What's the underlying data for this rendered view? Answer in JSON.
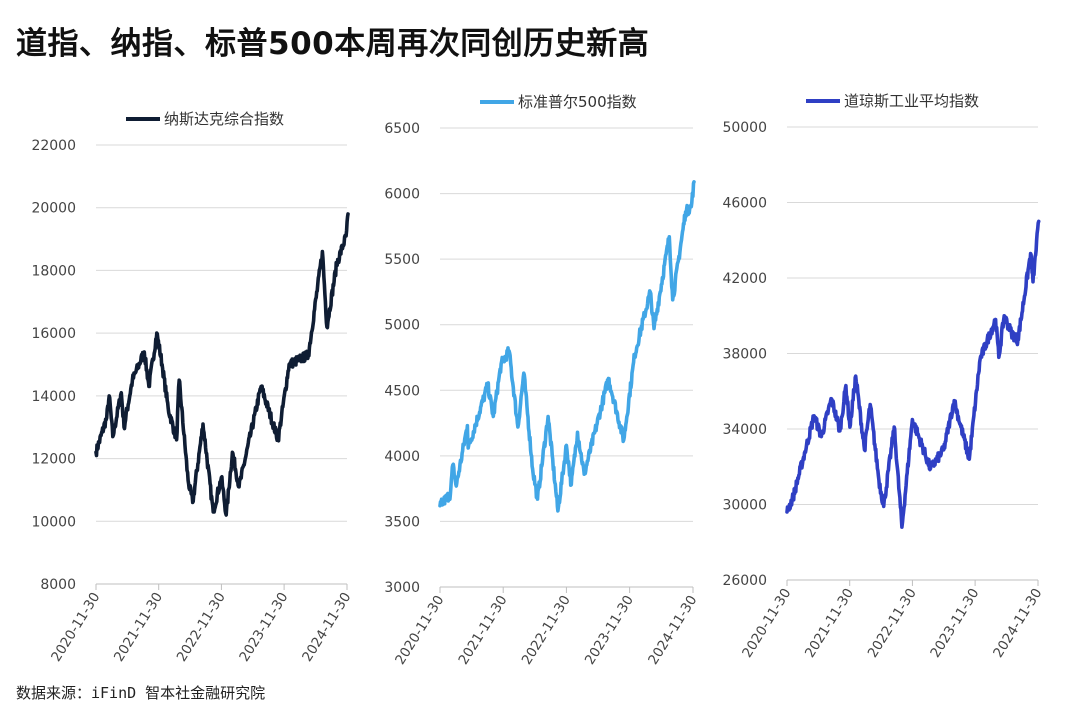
{
  "title": "道指、纳指、标普500本周再次同创历史新高",
  "source": "数据来源：iFinD 智本社金融研究院",
  "chart_data": [
    {
      "type": "line",
      "legend": "纳斯达克综合指数",
      "color": "#0f1d33",
      "ylim": [
        8000,
        22000
      ],
      "yticks": [
        8000,
        10000,
        12000,
        14000,
        16000,
        18000,
        20000,
        22000
      ],
      "x_ticks": [
        "2020-11-30",
        "2021-11-30",
        "2022-11-30",
        "2023-11-30",
        "2024-11-30"
      ],
      "series": [
        {
          "x": "2020-11-30",
          "y": 12200
        },
        {
          "x": "2021-01-31",
          "y": 13300
        },
        {
          "x": "2021-02-15",
          "y": 14000
        },
        {
          "x": "2021-03-08",
          "y": 12700
        },
        {
          "x": "2021-04-26",
          "y": 14100
        },
        {
          "x": "2021-05-12",
          "y": 13000
        },
        {
          "x": "2021-06-30",
          "y": 14500
        },
        {
          "x": "2021-09-07",
          "y": 15400
        },
        {
          "x": "2021-10-04",
          "y": 14300
        },
        {
          "x": "2021-11-19",
          "y": 16000
        },
        {
          "x": "2021-12-20",
          "y": 15000
        },
        {
          "x": "2022-01-24",
          "y": 13600
        },
        {
          "x": "2022-03-14",
          "y": 12600
        },
        {
          "x": "2022-03-29",
          "y": 14500
        },
        {
          "x": "2022-05-20",
          "y": 11300
        },
        {
          "x": "2022-06-16",
          "y": 10600
        },
        {
          "x": "2022-08-15",
          "y": 13100
        },
        {
          "x": "2022-10-13",
          "y": 10300
        },
        {
          "x": "2022-11-30",
          "y": 11400
        },
        {
          "x": "2022-12-28",
          "y": 10200
        },
        {
          "x": "2023-02-02",
          "y": 12200
        },
        {
          "x": "2023-03-13",
          "y": 11100
        },
        {
          "x": "2023-07-19",
          "y": 14300
        },
        {
          "x": "2023-10-26",
          "y": 12600
        },
        {
          "x": "2023-12-29",
          "y": 15000
        },
        {
          "x": "2024-04-19",
          "y": 15300
        },
        {
          "x": "2024-07-10",
          "y": 18600
        },
        {
          "x": "2024-08-05",
          "y": 16200
        },
        {
          "x": "2024-10-01",
          "y": 18200
        },
        {
          "x": "2024-11-25",
          "y": 19100
        },
        {
          "x": "2024-12-06",
          "y": 19800
        }
      ]
    },
    {
      "type": "line",
      "legend": "标准普尔500指数",
      "color": "#41a6e6",
      "ylim": [
        3000,
        6500
      ],
      "yticks": [
        3000,
        3500,
        4000,
        4500,
        5000,
        5500,
        6000,
        6500
      ],
      "x_ticks": [
        "2020-11-30",
        "2021-11-30",
        "2022-11-30",
        "2023-11-30",
        "2024-11-30"
      ],
      "series": [
        {
          "x": "2020-11-30",
          "y": 3620
        },
        {
          "x": "2021-01-29",
          "y": 3710
        },
        {
          "x": "2021-02-12",
          "y": 3930
        },
        {
          "x": "2021-03-04",
          "y": 3770
        },
        {
          "x": "2021-05-07",
          "y": 4230
        },
        {
          "x": "2021-05-12",
          "y": 4060
        },
        {
          "x": "2021-09-02",
          "y": 4540
        },
        {
          "x": "2021-10-04",
          "y": 4300
        },
        {
          "x": "2021-11-18",
          "y": 4700
        },
        {
          "x": "2022-01-03",
          "y": 4800
        },
        {
          "x": "2022-02-23",
          "y": 4220
        },
        {
          "x": "2022-03-29",
          "y": 4630
        },
        {
          "x": "2022-05-19",
          "y": 3900
        },
        {
          "x": "2022-06-16",
          "y": 3670
        },
        {
          "x": "2022-08-16",
          "y": 4300
        },
        {
          "x": "2022-10-12",
          "y": 3580
        },
        {
          "x": "2022-11-30",
          "y": 4080
        },
        {
          "x": "2022-12-28",
          "y": 3780
        },
        {
          "x": "2023-02-02",
          "y": 4180
        },
        {
          "x": "2023-03-13",
          "y": 3860
        },
        {
          "x": "2023-07-31",
          "y": 4590
        },
        {
          "x": "2023-10-27",
          "y": 4120
        },
        {
          "x": "2023-12-29",
          "y": 4770
        },
        {
          "x": "2024-03-28",
          "y": 5250
        },
        {
          "x": "2024-04-19",
          "y": 4970
        },
        {
          "x": "2024-07-16",
          "y": 5670
        },
        {
          "x": "2024-08-05",
          "y": 5190
        },
        {
          "x": "2024-10-18",
          "y": 5860
        },
        {
          "x": "2024-11-20",
          "y": 5900
        },
        {
          "x": "2024-12-06",
          "y": 6090
        }
      ]
    },
    {
      "type": "line",
      "legend": "道琼斯工业平均指数",
      "color": "#2f3fc4",
      "ylim": [
        26000,
        50000
      ],
      "yticks": [
        26000,
        30000,
        34000,
        38000,
        42000,
        46000,
        50000
      ],
      "x_ticks": [
        "2020-11-30",
        "2021-11-30",
        "2022-11-30",
        "2023-11-30",
        "2024-11-30"
      ],
      "series": [
        {
          "x": "2020-11-30",
          "y": 29600
        },
        {
          "x": "2021-01-05",
          "y": 30400
        },
        {
          "x": "2021-03-15",
          "y": 32800
        },
        {
          "x": "2021-05-07",
          "y": 34700
        },
        {
          "x": "2021-06-18",
          "y": 33600
        },
        {
          "x": "2021-08-16",
          "y": 35600
        },
        {
          "x": "2021-10-04",
          "y": 33900
        },
        {
          "x": "2021-11-08",
          "y": 36300
        },
        {
          "x": "2021-12-01",
          "y": 34100
        },
        {
          "x": "2022-01-04",
          "y": 36800
        },
        {
          "x": "2022-02-24",
          "y": 32900
        },
        {
          "x": "2022-03-29",
          "y": 35300
        },
        {
          "x": "2022-05-19",
          "y": 31300
        },
        {
          "x": "2022-06-16",
          "y": 29900
        },
        {
          "x": "2022-08-16",
          "y": 34100
        },
        {
          "x": "2022-09-30",
          "y": 28800
        },
        {
          "x": "2022-11-30",
          "y": 34500
        },
        {
          "x": "2023-03-15",
          "y": 31900
        },
        {
          "x": "2023-05-31",
          "y": 32900
        },
        {
          "x": "2023-07-31",
          "y": 35500
        },
        {
          "x": "2023-10-27",
          "y": 32400
        },
        {
          "x": "2023-12-29",
          "y": 37700
        },
        {
          "x": "2024-03-28",
          "y": 39800
        },
        {
          "x": "2024-04-16",
          "y": 37800
        },
        {
          "x": "2024-05-17",
          "y": 40000
        },
        {
          "x": "2024-06-28",
          "y": 39100
        },
        {
          "x": "2024-08-05",
          "y": 38700
        },
        {
          "x": "2024-10-18",
          "y": 43300
        },
        {
          "x": "2024-11-01",
          "y": 41800
        },
        {
          "x": "2024-12-04",
          "y": 45000
        }
      ]
    }
  ]
}
